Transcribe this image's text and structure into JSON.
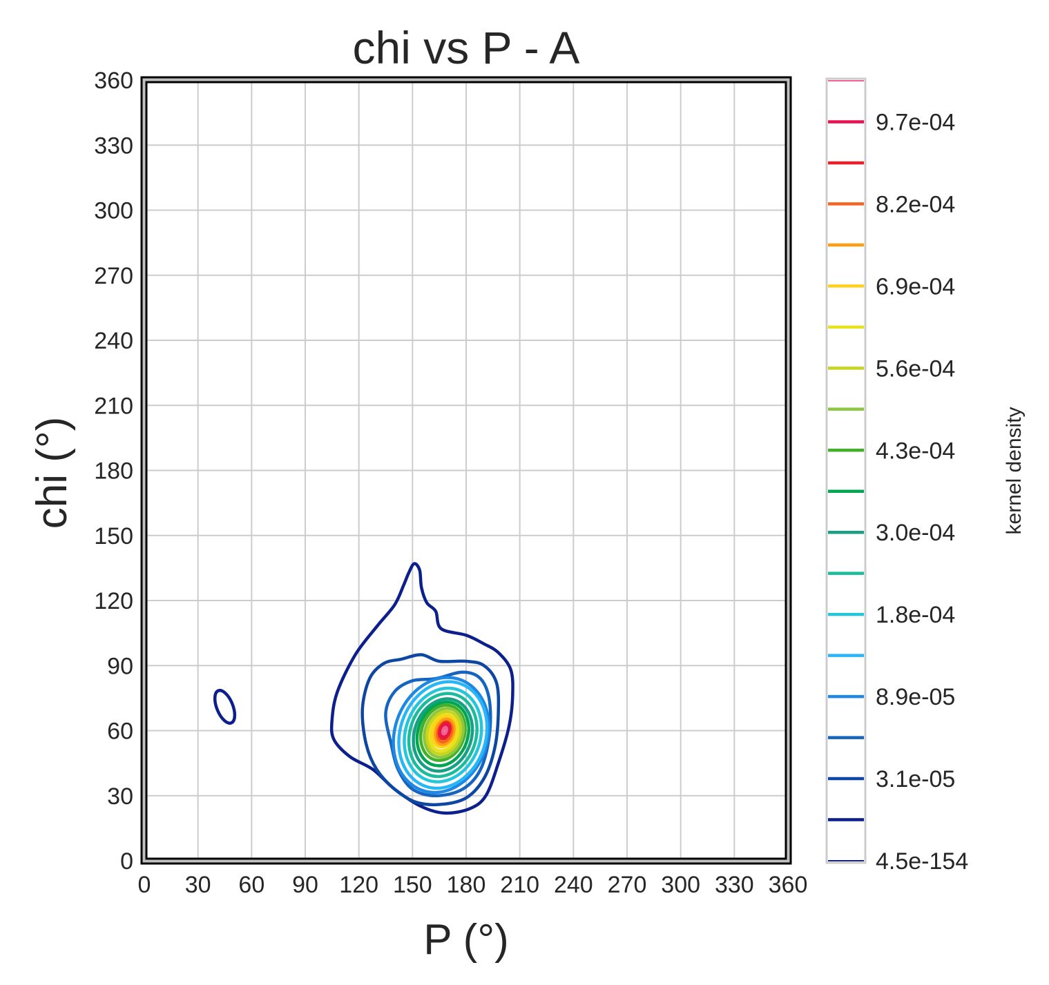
{
  "chart_data": {
    "type": "contour",
    "title": "chi vs P - A",
    "xlabel": "P (°)",
    "ylabel": "chi (°)",
    "xlim": [
      0,
      360
    ],
    "ylim": [
      0,
      360
    ],
    "x_ticks": [
      0,
      30,
      60,
      90,
      120,
      150,
      180,
      210,
      240,
      270,
      300,
      330,
      360
    ],
    "y_ticks": [
      0,
      30,
      60,
      90,
      120,
      150,
      180,
      210,
      240,
      270,
      300,
      330,
      360
    ],
    "x_tick_labels": [
      "0",
      "30",
      "60",
      "90",
      "120",
      "150",
      "180",
      "210",
      "240",
      "270",
      "300",
      "330",
      "360"
    ],
    "y_tick_labels": [
      "0",
      "30",
      "60",
      "90",
      "120",
      "150",
      "180",
      "210",
      "240",
      "270",
      "300",
      "330",
      "360"
    ],
    "grid": true,
    "colorbar": {
      "label": "kernel density",
      "tick_labels": [
        "4.5e-154",
        "3.1e-05",
        "8.9e-05",
        "1.8e-04",
        "3.0e-04",
        "4.3e-04",
        "5.6e-04",
        "6.9e-04",
        "8.2e-04",
        "9.7e-04"
      ],
      "level_colors": [
        "#1a237e",
        "#0d1f8c",
        "#0d47a1",
        "#1565c0",
        "#1e88e5",
        "#29b6f6",
        "#26c6da",
        "#1abc9c",
        "#16a085",
        "#00a651",
        "#43b02a",
        "#8dc63f",
        "#c8d51e",
        "#e8e21e",
        "#ffd11a",
        "#ff9e0f",
        "#f26522",
        "#e8202a",
        "#e8104f",
        "#f06292"
      ]
    },
    "secondary_contour": {
      "center": [
        45,
        71
      ],
      "color": "#0d1f8c"
    },
    "contours": [
      {
        "color": "#0d1f8c",
        "points": [
          [
            105,
            65
          ],
          [
            108,
            78
          ],
          [
            118,
            95
          ],
          [
            130,
            108
          ],
          [
            140,
            118
          ],
          [
            145,
            127
          ],
          [
            148,
            133
          ],
          [
            151,
            137
          ],
          [
            154,
            134
          ],
          [
            155,
            126
          ],
          [
            158,
            119
          ],
          [
            163,
            115
          ],
          [
            166,
            107
          ],
          [
            180,
            104
          ],
          [
            190,
            100
          ],
          [
            198,
            96
          ],
          [
            205,
            88
          ],
          [
            206,
            76
          ],
          [
            204,
            62
          ],
          [
            198,
            45
          ],
          [
            191,
            30
          ],
          [
            182,
            24
          ],
          [
            168,
            22
          ],
          [
            155,
            25
          ],
          [
            140,
            33
          ],
          [
            128,
            42
          ],
          [
            115,
            48
          ],
          [
            106,
            56
          ]
        ]
      },
      {
        "color": "#0d47a1",
        "points": [
          [
            122,
            70
          ],
          [
            126,
            84
          ],
          [
            134,
            91
          ],
          [
            144,
            93
          ],
          [
            155,
            95
          ],
          [
            165,
            92
          ],
          [
            180,
            92
          ],
          [
            190,
            90
          ],
          [
            197,
            82
          ],
          [
            198,
            68
          ],
          [
            196,
            52
          ],
          [
            190,
            38
          ],
          [
            180,
            29
          ],
          [
            166,
            26
          ],
          [
            152,
            27
          ],
          [
            140,
            33
          ],
          [
            130,
            42
          ],
          [
            124,
            54
          ]
        ]
      },
      {
        "color": "#1565c0",
        "points": [
          [
            135,
            68
          ],
          [
            140,
            78
          ],
          [
            150,
            83
          ],
          [
            163,
            84
          ],
          [
            178,
            87
          ],
          [
            188,
            84
          ],
          [
            193,
            74
          ],
          [
            193,
            58
          ],
          [
            188,
            42
          ],
          [
            178,
            33
          ],
          [
            163,
            30
          ],
          [
            150,
            33
          ],
          [
            142,
            42
          ],
          [
            138,
            54
          ]
        ]
      },
      {
        "color": "#1e88e5",
        "center": [
          166,
          58
        ],
        "rx": 26,
        "ry": 27
      },
      {
        "color": "#29b6f6",
        "center": [
          167,
          58
        ],
        "rx": 24,
        "ry": 25
      },
      {
        "color": "#26c6da",
        "center": [
          167,
          58
        ],
        "rx": 21,
        "ry": 22
      },
      {
        "color": "#1abc9c",
        "center": [
          167,
          58
        ],
        "rx": 18.5,
        "ry": 19.5
      },
      {
        "color": "#16a085",
        "center": [
          167,
          58
        ],
        "rx": 16,
        "ry": 17
      },
      {
        "color": "#00a651",
        "center": [
          167,
          58.5
        ],
        "rx": 14,
        "ry": 15
      },
      {
        "color": "#43b02a",
        "center": [
          167,
          59
        ],
        "rx": 12,
        "ry": 13
      },
      {
        "color": "#8dc63f",
        "center": [
          167.5,
          59
        ],
        "rx": 10.5,
        "ry": 11.5
      },
      {
        "color": "#c8d51e",
        "center": [
          167.5,
          59
        ],
        "rx": 9,
        "ry": 10
      },
      {
        "color": "#e8e21e",
        "center": [
          167.5,
          59
        ],
        "rx": 7.5,
        "ry": 8.5
      },
      {
        "color": "#ffd11a",
        "center": [
          167.5,
          59.5
        ],
        "rx": 6.2,
        "ry": 7.2
      },
      {
        "color": "#ff9e0f",
        "center": [
          168,
          59.5
        ],
        "rx": 5,
        "ry": 6
      },
      {
        "color": "#f26522",
        "center": [
          168,
          59.5
        ],
        "rx": 3.8,
        "ry": 4.8
      },
      {
        "color": "#e8202a",
        "center": [
          168,
          60
        ],
        "rx": 2.8,
        "ry": 3.8
      },
      {
        "color": "#e8104f",
        "center": [
          168,
          60
        ],
        "rx": 1.8,
        "ry": 2.8
      },
      {
        "color": "#f06292",
        "center": [
          168,
          60
        ],
        "rx": 1,
        "ry": 1.6
      }
    ]
  }
}
